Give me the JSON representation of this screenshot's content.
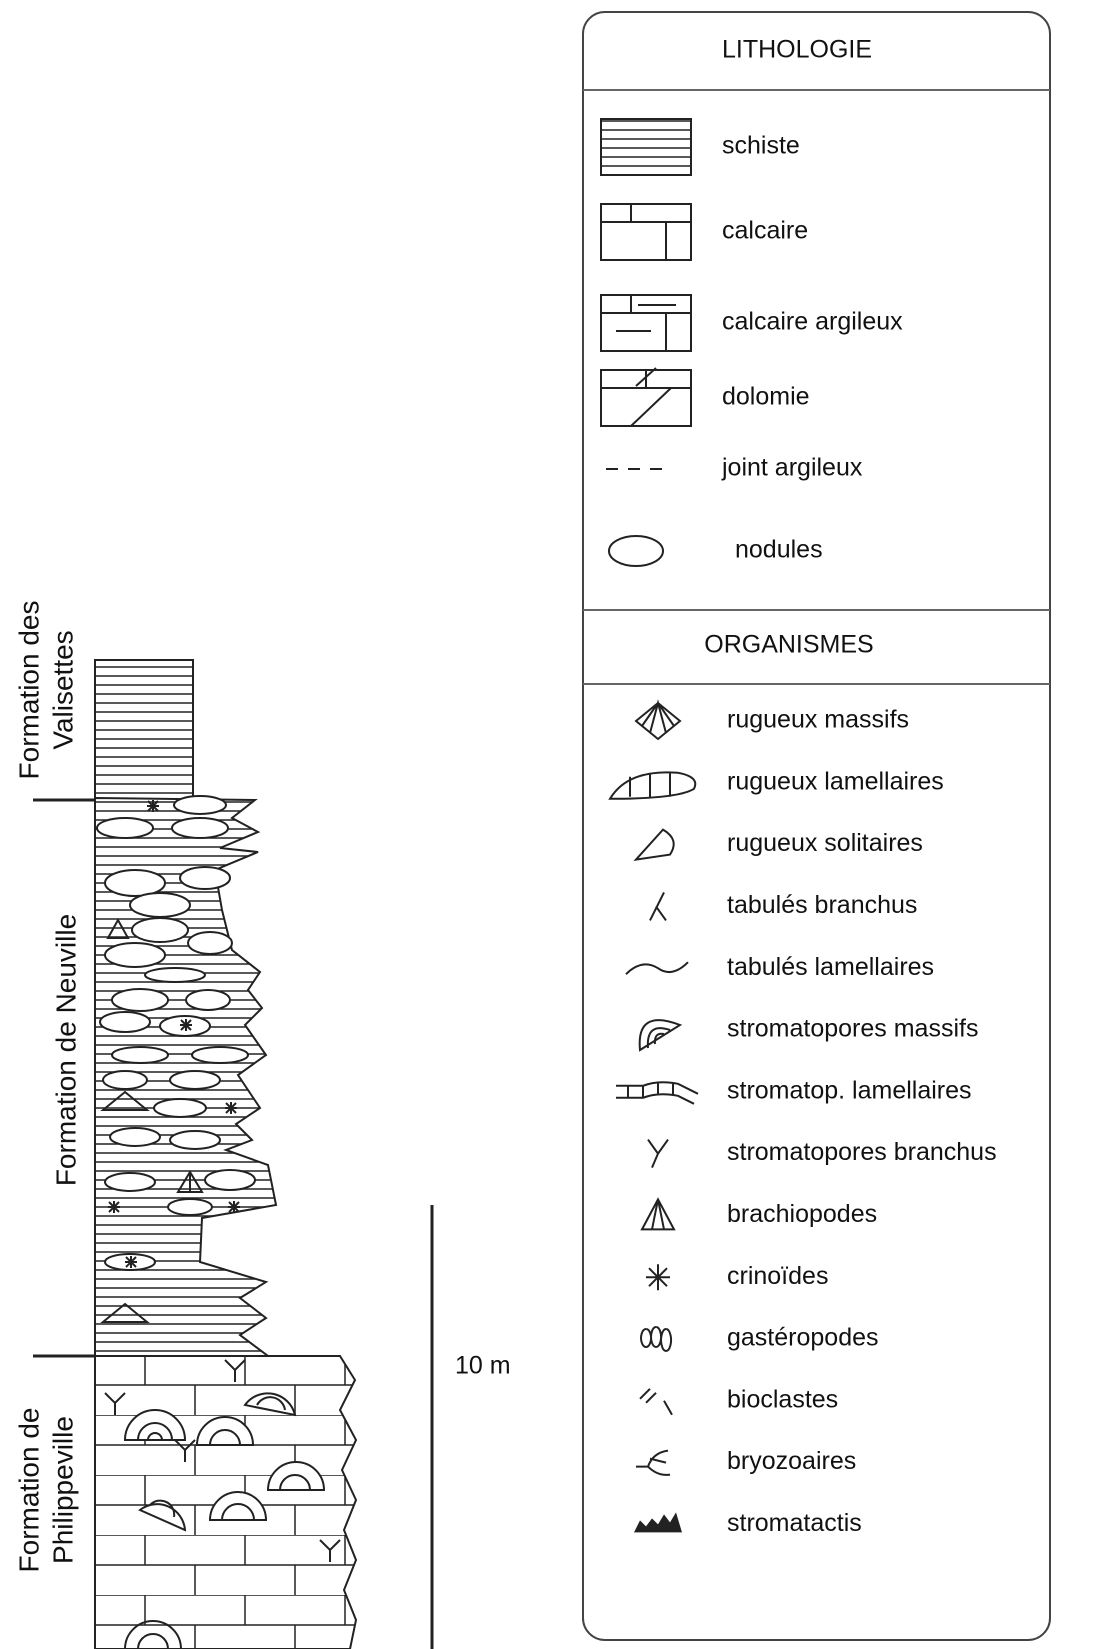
{
  "column": {
    "formations": [
      [
        "Formation des",
        "Valisettes"
      ],
      [
        "Formation de Neuville"
      ],
      [
        "Formation de",
        "Philippeville"
      ]
    ],
    "scale_label": "10 m"
  },
  "legend": {
    "lithology": {
      "title": "LITHOLOGIE",
      "items": [
        "schiste",
        "calcaire",
        "calcaire argileux",
        "dolomie",
        "joint argileux",
        "nodules"
      ]
    },
    "organisms": {
      "title": "ORGANISMES",
      "items": [
        "rugueux massifs",
        "rugueux lamellaires",
        "rugueux solitaires",
        "tabulés branchus",
        "tabulés lamellaires",
        "stromatopores massifs",
        "stromatop. lamellaires",
        "stromatopores branchus",
        "brachiopodes",
        "crinoïdes",
        "gastéropodes",
        "bioclastes",
        "bryozoaires",
        "stromatactis"
      ]
    }
  }
}
